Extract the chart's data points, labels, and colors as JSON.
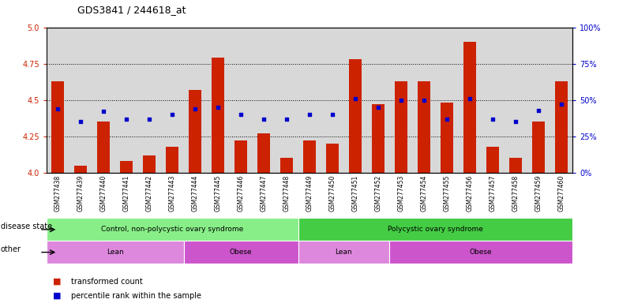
{
  "title": "GDS3841 / 244618_at",
  "samples": [
    "GSM277438",
    "GSM277439",
    "GSM277440",
    "GSM277441",
    "GSM277442",
    "GSM277443",
    "GSM277444",
    "GSM277445",
    "GSM277446",
    "GSM277447",
    "GSM277448",
    "GSM277449",
    "GSM277450",
    "GSM277451",
    "GSM277452",
    "GSM277453",
    "GSM277454",
    "GSM277455",
    "GSM277456",
    "GSM277457",
    "GSM277458",
    "GSM277459",
    "GSM277460"
  ],
  "bar_values": [
    4.63,
    4.05,
    4.35,
    4.08,
    4.12,
    4.18,
    4.57,
    4.79,
    4.22,
    4.27,
    4.1,
    4.22,
    4.2,
    4.78,
    4.47,
    4.63,
    4.63,
    4.48,
    4.9,
    4.18,
    4.1,
    4.35,
    4.63
  ],
  "dot_values": [
    44,
    35,
    42,
    37,
    37,
    40,
    44,
    45,
    40,
    37,
    37,
    40,
    40,
    51,
    45,
    50,
    50,
    37,
    51,
    37,
    35,
    43,
    47
  ],
  "ylim_left": [
    4.0,
    5.0
  ],
  "ylim_right": [
    0,
    100
  ],
  "yticks_left": [
    4.0,
    4.25,
    4.5,
    4.75,
    5.0
  ],
  "yticks_right": [
    0,
    25,
    50,
    75,
    100
  ],
  "ytick_labels_right": [
    "0%",
    "25%",
    "50%",
    "75%",
    "100%"
  ],
  "bar_color": "#cc2200",
  "dot_color": "#0000cc",
  "disease_state_groups": [
    {
      "label": "Control, non-polycystic ovary syndrome",
      "start": 0,
      "end": 11,
      "color": "#88ee88"
    },
    {
      "label": "Polycystic ovary syndrome",
      "start": 11,
      "end": 23,
      "color": "#44cc44"
    }
  ],
  "other_groups": [
    {
      "label": "Lean",
      "start": 0,
      "end": 6,
      "color": "#dd88dd"
    },
    {
      "label": "Obese",
      "start": 6,
      "end": 11,
      "color": "#cc55cc"
    },
    {
      "label": "Lean",
      "start": 11,
      "end": 15,
      "color": "#dd88dd"
    },
    {
      "label": "Obese",
      "start": 15,
      "end": 23,
      "color": "#cc55cc"
    }
  ],
  "legend_items": [
    {
      "label": "transformed count",
      "color": "#cc2200"
    },
    {
      "label": "percentile rank within the sample",
      "color": "#0000cc"
    }
  ],
  "row_labels": [
    "disease state",
    "other"
  ],
  "bg_color": "#d8d8d8",
  "grid_yticks": [
    4.25,
    4.5,
    4.75
  ]
}
